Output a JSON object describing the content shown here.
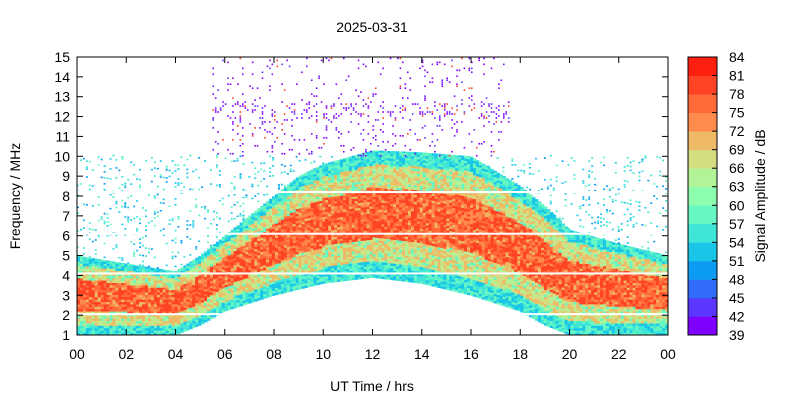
{
  "chart_data": {
    "type": "heatmap",
    "title": "2025-03-31",
    "xlabel": "UT Time / hrs",
    "ylabel": "Frequency / MHz",
    "colorbar_label": "Signal Amplitude / dB",
    "x_range": [
      0,
      24
    ],
    "y_range": [
      1,
      15
    ],
    "x_ticks": [
      "00",
      "02",
      "04",
      "06",
      "08",
      "10",
      "12",
      "14",
      "16",
      "18",
      "20",
      "22",
      "00"
    ],
    "y_ticks": [
      "1",
      "2",
      "3",
      "4",
      "5",
      "6",
      "7",
      "8",
      "9",
      "10",
      "11",
      "12",
      "13",
      "14",
      "15"
    ],
    "colorbar_ticks": [
      "39",
      "42",
      "45",
      "48",
      "51",
      "54",
      "57",
      "60",
      "63",
      "66",
      "69",
      "72",
      "75",
      "78",
      "81",
      "84"
    ],
    "colorbar_range": [
      39,
      84
    ],
    "colorbar_colors": [
      "#8000ff",
      "#5a36ff",
      "#326cfa",
      "#0c9cf2",
      "#1ac6e8",
      "#3fe5d6",
      "#66f7c3",
      "#8cfeae",
      "#b2f398",
      "#d4dd80",
      "#eeba66",
      "#ff8c4c",
      "#ff6a38",
      "#ff4426",
      "#ff1f10"
    ],
    "regions": [
      {
        "name": "Strong ionospheric absorption band",
        "upper_edge": [
          [
            0,
            5.0
          ],
          [
            2,
            4.6
          ],
          [
            4,
            4.2
          ],
          [
            5,
            5.0
          ],
          [
            6,
            6.0
          ],
          [
            7,
            7.0
          ],
          [
            8,
            8.0
          ],
          [
            9,
            9.0
          ],
          [
            10,
            9.6
          ],
          [
            12,
            10.3
          ],
          [
            14,
            10.2
          ],
          [
            16,
            10.0
          ],
          [
            18,
            8.5
          ],
          [
            19,
            7.5
          ],
          [
            20,
            6.3
          ],
          [
            22,
            5.6
          ],
          [
            24,
            5.0
          ]
        ],
        "lower_edge": [
          [
            0,
            1.0
          ],
          [
            4,
            1.0
          ],
          [
            5,
            1.5
          ],
          [
            6,
            2.2
          ],
          [
            8,
            3.0
          ],
          [
            10,
            3.6
          ],
          [
            12,
            3.9
          ],
          [
            14,
            3.6
          ],
          [
            16,
            3.0
          ],
          [
            18,
            2.2
          ],
          [
            19,
            1.5
          ],
          [
            20,
            1.0
          ],
          [
            24,
            1.0
          ]
        ]
      },
      {
        "name": "Scattered low-level noise above 10 MHz",
        "x_span": [
          5.5,
          17.5
        ],
        "y_span": [
          10,
          15
        ]
      }
    ]
  }
}
